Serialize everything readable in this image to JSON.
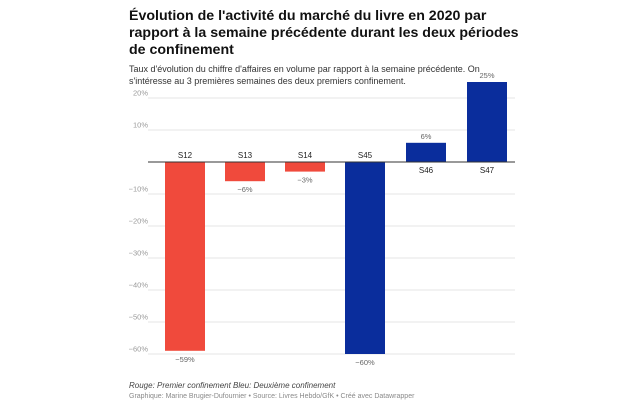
{
  "title": "Évolution de l'activité du marché du livre en 2020 par rapport à la semaine précédente durant les deux périodes de confinement",
  "subtitle": "Taux d'évolution du chiffre d'affaires en volume par rapport à la semaine précédente. On s'intéresse au 3 premières semaines des deux premiers confinement.",
  "note": "Rouge: Premier confinement Bleu: Deuxième confinement",
  "footer": "Graphique: Marine Brugier-Dufournier • Source: Livres Hebdo/GfK • Créé avec Datawrapper",
  "colors": {
    "first": "#f04a3c",
    "second": "#0a2d9c",
    "grid": "#e6e6e6",
    "axis": "#333333",
    "tick": "#9a9a9a",
    "label": "#222222",
    "value": "#666666"
  },
  "chart_data": {
    "type": "bar",
    "categories": [
      "S12",
      "S13",
      "S14",
      "S45",
      "S46",
      "S47"
    ],
    "values": [
      -59,
      -6,
      -3,
      -60,
      6,
      25
    ],
    "value_labels": [
      "−59%",
      "−6%",
      "−3%",
      "−60%",
      "6%",
      "25%"
    ],
    "bar_colors": [
      "#f04a3c",
      "#f04a3c",
      "#f04a3c",
      "#0a2d9c",
      "#0a2d9c",
      "#0a2d9c"
    ],
    "yticks": [
      20,
      10,
      -10,
      -20,
      -30,
      -40,
      -50,
      -60
    ],
    "ytick_labels": [
      "20%",
      "10%",
      "−10%",
      "−20%",
      "−30%",
      "−40%",
      "−50%",
      "−60%"
    ],
    "ylim": [
      -60,
      25
    ],
    "grid": true,
    "legend": "none"
  }
}
